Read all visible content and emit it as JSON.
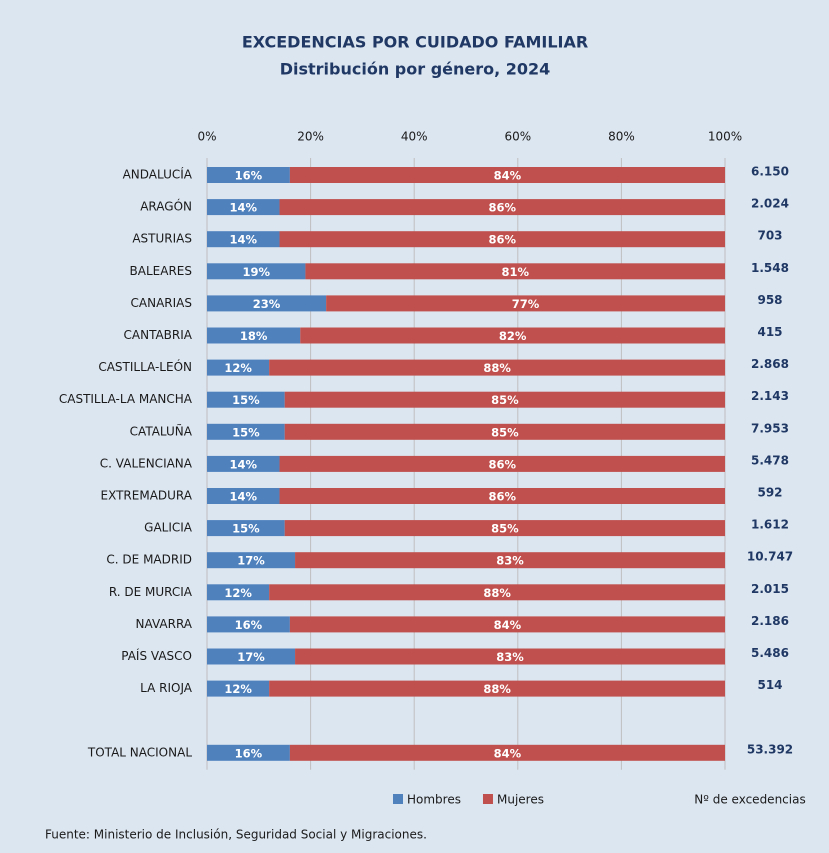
{
  "chart_data": {
    "type": "stacked-bar-horizontal",
    "title": "EXCEDENCIAS POR CUIDADO FAMILIAR",
    "subtitle": "Distribución por género, 2024",
    "categories": [
      "ANDALUCÍA",
      "ARAGÓN",
      "ASTURIAS",
      "BALEARES",
      "CANARIAS",
      "CANTABRIA",
      "CASTILLA-LEÓN",
      "CASTILLA-LA MANCHA",
      "CATALUÑA",
      "C. VALENCIANA",
      "EXTREMADURA",
      "GALICIA",
      "C. DE MADRID",
      "R. DE MURCIA",
      "NAVARRA",
      "PAÍS VASCO",
      "LA RIOJA",
      null,
      "TOTAL NACIONAL"
    ],
    "series": [
      {
        "name": "Hombres",
        "color": "#4f81bd",
        "values": [
          16,
          14,
          14,
          19,
          23,
          18,
          12,
          15,
          15,
          14,
          14,
          15,
          17,
          12,
          16,
          17,
          12,
          null,
          16
        ],
        "value_labels": [
          "16%",
          "14%",
          "14%",
          "19%",
          "23%",
          "18%",
          "12%",
          "15%",
          "15%",
          "14%",
          "14%",
          "15%",
          "17%",
          "12%",
          "16%",
          "17%",
          "12%",
          null,
          "16%"
        ]
      },
      {
        "name": "Mujeres",
        "color": "#c0504d",
        "values": [
          84,
          86,
          86,
          81,
          77,
          82,
          88,
          85,
          85,
          86,
          86,
          85,
          83,
          88,
          84,
          83,
          88,
          null,
          84
        ],
        "value_labels": [
          "84%",
          "86%",
          "86%",
          "81%",
          "77%",
          "82%",
          "88%",
          "85%",
          "85%",
          "86%",
          "86%",
          "85%",
          "83%",
          "88%",
          "84%",
          "83%",
          "88%",
          null,
          "84%"
        ]
      }
    ],
    "totals": {
      "name": "Nº de excedencias",
      "values": [
        6150,
        2024,
        703,
        1548,
        958,
        415,
        2868,
        2143,
        7953,
        5478,
        592,
        1612,
        10747,
        2015,
        2186,
        5486,
        514,
        null,
        53392
      ],
      "value_labels": [
        "6.150",
        "2.024",
        "703",
        "1.548",
        "958",
        "415",
        "2.868",
        "2.143",
        "7.953",
        "5.478",
        "592",
        "1.612",
        "10.747",
        "2.015",
        "2.186",
        "5.486",
        "514",
        null,
        "53.392"
      ]
    },
    "xlim": [
      0,
      100
    ],
    "xticks": [
      {
        "value": 0,
        "label": "0%"
      },
      {
        "value": 20,
        "label": "20%"
      },
      {
        "value": 40,
        "label": "40%"
      },
      {
        "value": 60,
        "label": "60%"
      },
      {
        "value": 80,
        "label": "80%"
      },
      {
        "value": 100,
        "label": "100%"
      }
    ],
    "grid": true,
    "legend": "bottom",
    "source": "Fuente: Ministerio de Inclusión, Seguridad Social y Migraciones."
  }
}
